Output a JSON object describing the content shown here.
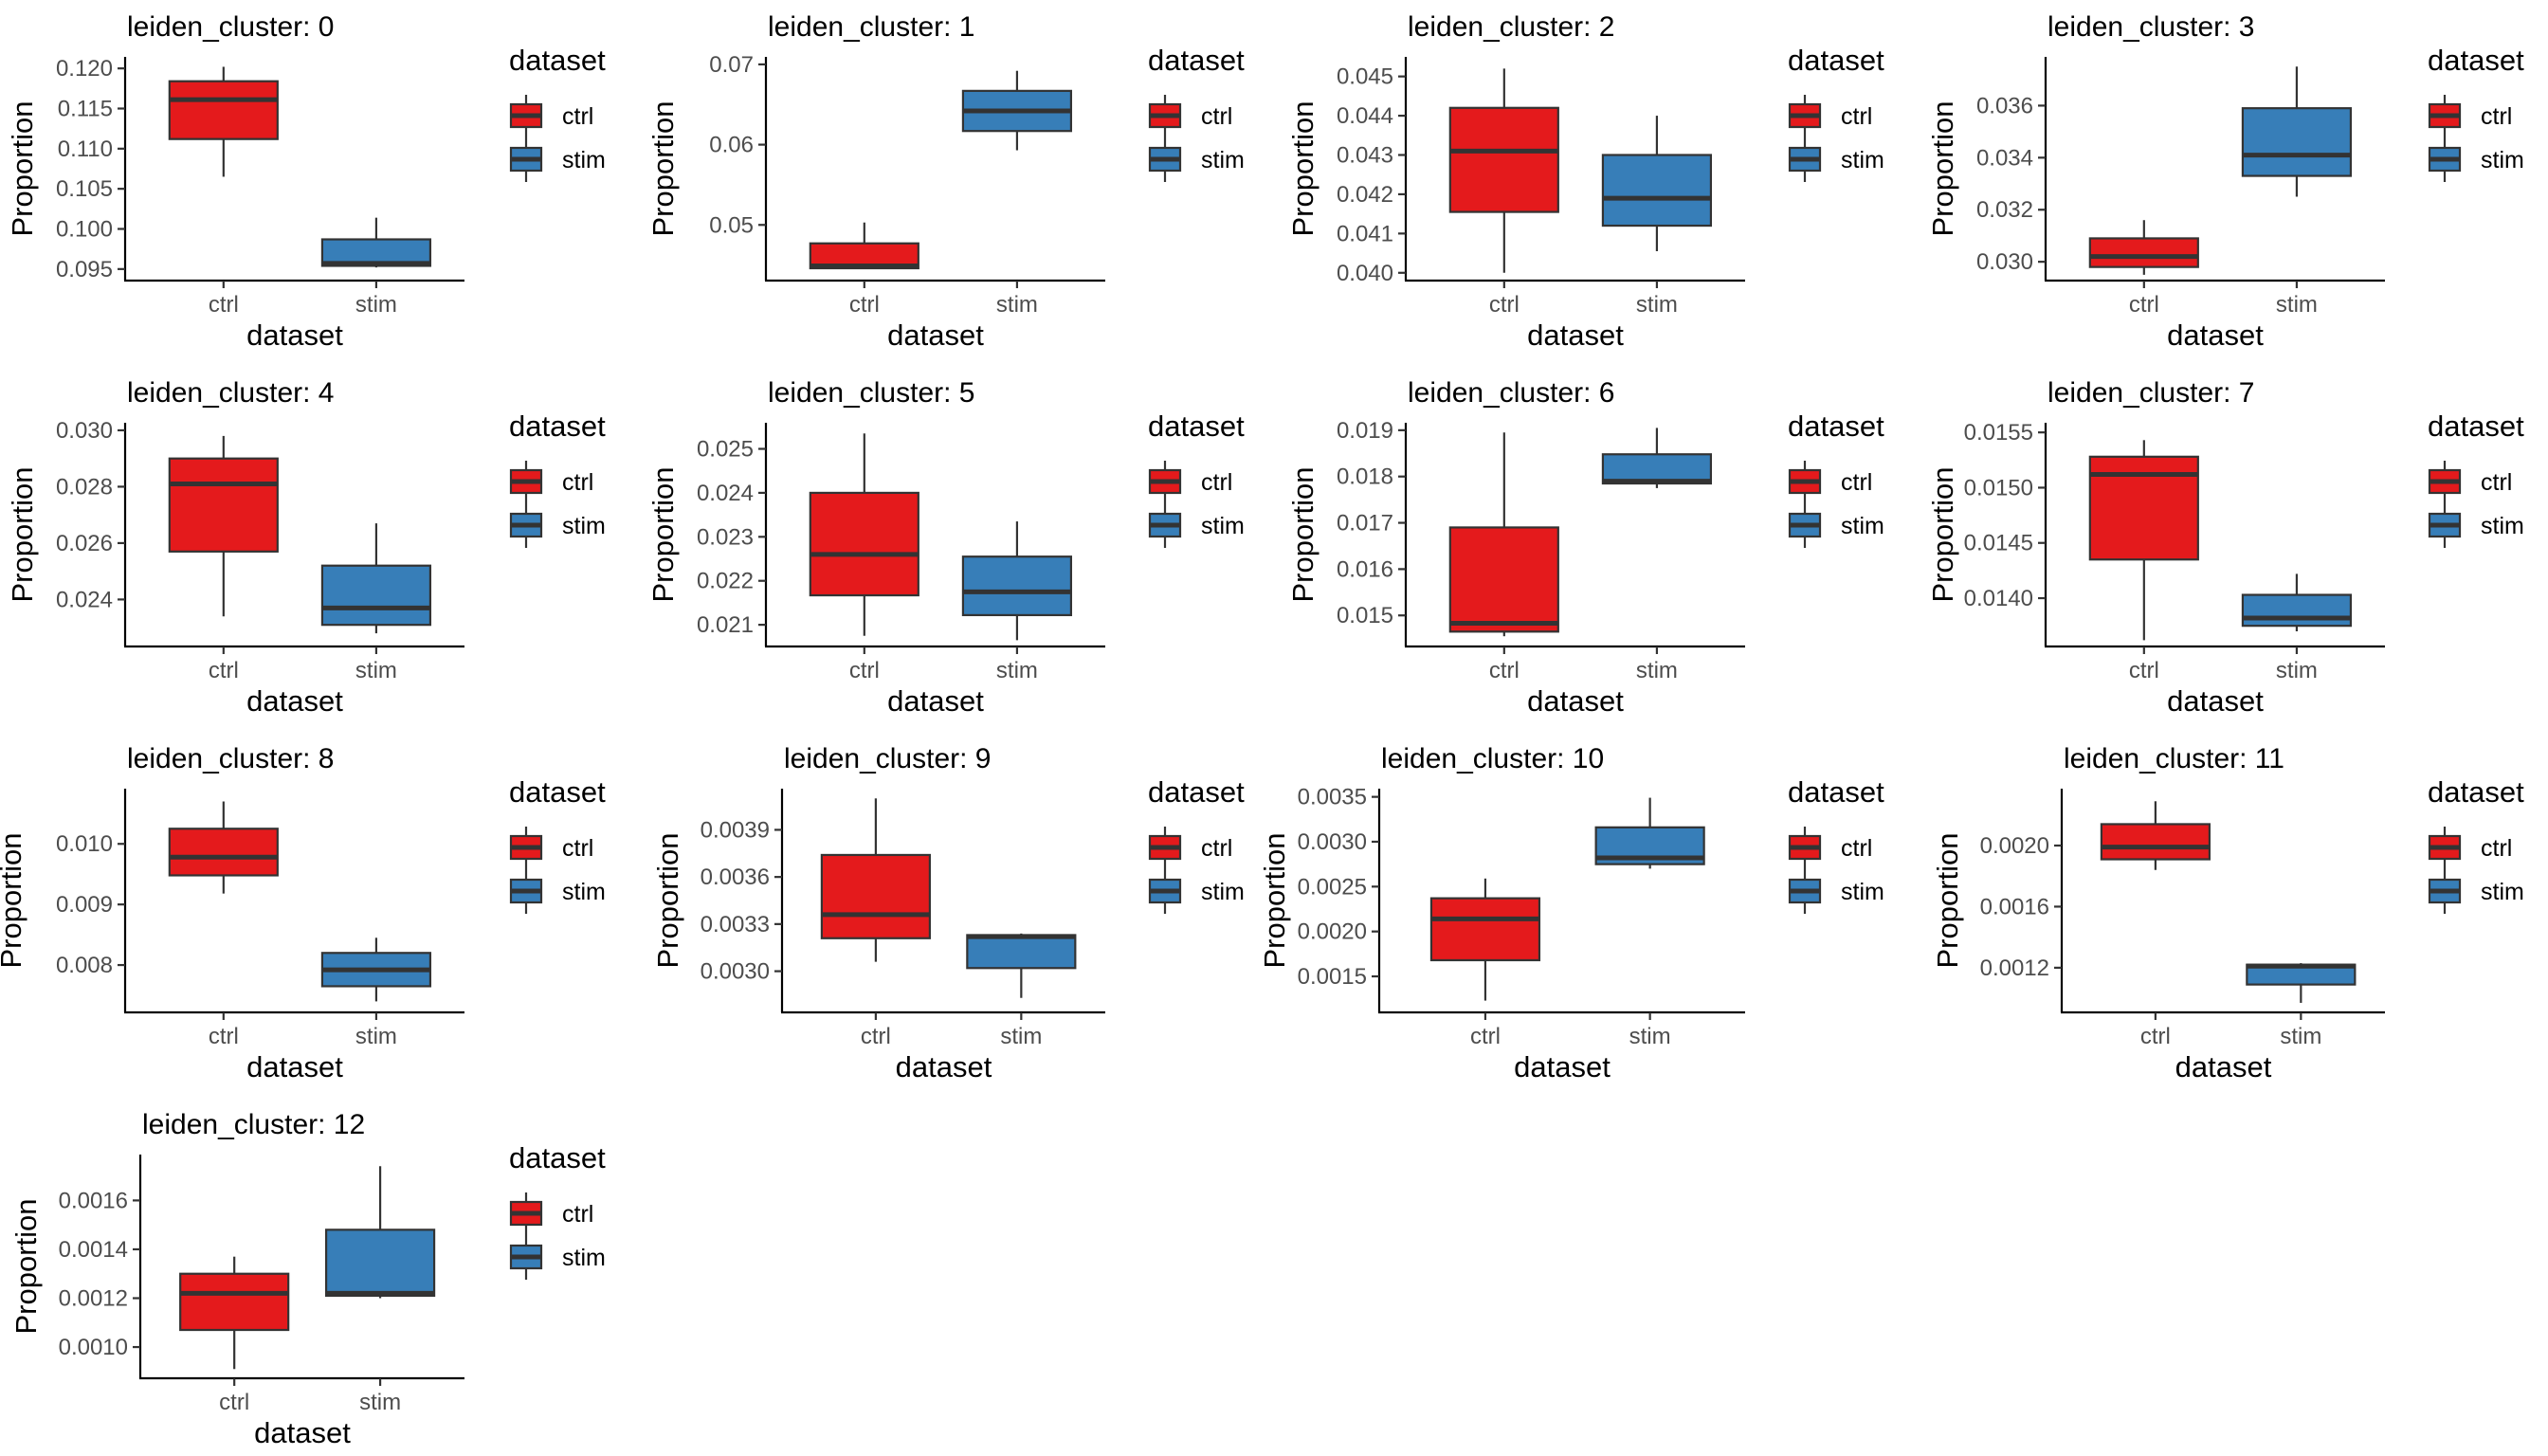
{
  "colors": {
    "ctrl": "#E41A1C",
    "stim": "#377EB8"
  },
  "chart_data": [
    {
      "type": "boxplot",
      "title": "leiden_cluster: 0",
      "xlabel": "dataset",
      "ylabel": "Proportion",
      "categories": [
        "ctrl",
        "stim"
      ],
      "ylim": [
        0.0938,
        0.1212
      ],
      "yticks": [
        "0.095",
        "0.100",
        "0.105",
        "0.110",
        "0.115",
        "0.120"
      ],
      "legend": {
        "title": "dataset",
        "entries": [
          "ctrl",
          "stim"
        ]
      },
      "boxes": [
        {
          "min": 0.1065,
          "q1": 0.1112,
          "median": 0.1161,
          "q3": 0.1184,
          "max": 0.1202
        },
        {
          "min": 0.0952,
          "q1": 0.0954,
          "median": 0.0957,
          "q3": 0.0987,
          "max": 0.1014
        }
      ]
    },
    {
      "type": "boxplot",
      "title": "leiden_cluster: 1",
      "xlabel": "dataset",
      "ylabel": "Proportion",
      "categories": [
        "ctrl",
        "stim"
      ],
      "ylim": [
        0.0433,
        0.0707
      ],
      "yticks": [
        "0.05",
        "0.06",
        "0.07"
      ],
      "legend": {
        "title": "dataset",
        "entries": [
          "ctrl",
          "stim"
        ]
      },
      "boxes": [
        {
          "min": 0.0445,
          "q1": 0.0446,
          "median": 0.0449,
          "q3": 0.0477,
          "max": 0.0503
        },
        {
          "min": 0.0593,
          "q1": 0.0617,
          "median": 0.0642,
          "q3": 0.0667,
          "max": 0.0692
        }
      ]
    },
    {
      "type": "boxplot",
      "title": "leiden_cluster: 2",
      "xlabel": "dataset",
      "ylabel": "Proportion",
      "categories": [
        "ctrl",
        "stim"
      ],
      "ylim": [
        0.03985,
        0.04545
      ],
      "yticks": [
        "0.040",
        "0.041",
        "0.042",
        "0.043",
        "0.044",
        "0.045"
      ],
      "legend": {
        "title": "dataset",
        "entries": [
          "ctrl",
          "stim"
        ]
      },
      "boxes": [
        {
          "min": 0.04,
          "q1": 0.04155,
          "median": 0.0431,
          "q3": 0.0442,
          "max": 0.0452
        },
        {
          "min": 0.04055,
          "q1": 0.0412,
          "median": 0.0419,
          "q3": 0.043,
          "max": 0.044
        }
      ]
    },
    {
      "type": "boxplot",
      "title": "leiden_cluster: 3",
      "xlabel": "dataset",
      "ylabel": "Proportion",
      "categories": [
        "ctrl",
        "stim"
      ],
      "ylim": [
        0.02935,
        0.0378
      ],
      "yticks": [
        "0.030",
        "0.032",
        "0.034",
        "0.036"
      ],
      "legend": {
        "title": "dataset",
        "entries": [
          "ctrl",
          "stim"
        ]
      },
      "boxes": [
        {
          "min": 0.0295,
          "q1": 0.0298,
          "median": 0.0302,
          "q3": 0.0309,
          "max": 0.0316
        },
        {
          "min": 0.0325,
          "q1": 0.0333,
          "median": 0.0341,
          "q3": 0.0359,
          "max": 0.0375
        }
      ]
    },
    {
      "type": "boxplot",
      "title": "leiden_cluster: 4",
      "xlabel": "dataset",
      "ylabel": "Proportion",
      "categories": [
        "ctrl",
        "stim"
      ],
      "ylim": [
        0.0224,
        0.0302
      ],
      "yticks": [
        "0.024",
        "0.026",
        "0.028",
        "0.030"
      ],
      "legend": {
        "title": "dataset",
        "entries": [
          "ctrl",
          "stim"
        ]
      },
      "boxes": [
        {
          "min": 0.0234,
          "q1": 0.0257,
          "median": 0.0281,
          "q3": 0.029,
          "max": 0.0298
        },
        {
          "min": 0.0228,
          "q1": 0.0231,
          "median": 0.0237,
          "q3": 0.0252,
          "max": 0.0267
        }
      ]
    },
    {
      "type": "boxplot",
      "title": "leiden_cluster: 5",
      "xlabel": "dataset",
      "ylabel": "Proportion",
      "categories": [
        "ctrl",
        "stim"
      ],
      "ylim": [
        0.02055,
        0.02555
      ],
      "yticks": [
        "0.021",
        "0.022",
        "0.023",
        "0.024",
        "0.025"
      ],
      "legend": {
        "title": "dataset",
        "entries": [
          "ctrl",
          "stim"
        ]
      },
      "boxes": [
        {
          "min": 0.02075,
          "q1": 0.02167,
          "median": 0.0226,
          "q3": 0.024,
          "max": 0.02535
        },
        {
          "min": 0.02065,
          "q1": 0.02122,
          "median": 0.02175,
          "q3": 0.02255,
          "max": 0.02335
        }
      ]
    },
    {
      "type": "boxplot",
      "title": "leiden_cluster: 6",
      "xlabel": "dataset",
      "ylabel": "Proportion",
      "categories": [
        "ctrl",
        "stim"
      ],
      "ylim": [
        0.01437,
        0.01912
      ],
      "yticks": [
        "0.015",
        "0.016",
        "0.017",
        "0.018",
        "0.019"
      ],
      "legend": {
        "title": "dataset",
        "entries": [
          "ctrl",
          "stim"
        ]
      },
      "boxes": [
        {
          "min": 0.01455,
          "q1": 0.01465,
          "median": 0.01483,
          "q3": 0.0169,
          "max": 0.01895
        },
        {
          "min": 0.01775,
          "q1": 0.01785,
          "median": 0.0179,
          "q3": 0.01848,
          "max": 0.01905
        }
      ]
    },
    {
      "type": "boxplot",
      "title": "leiden_cluster: 7",
      "xlabel": "dataset",
      "ylabel": "Proportion",
      "categories": [
        "ctrl",
        "stim"
      ],
      "ylim": [
        0.01358,
        0.01557
      ],
      "yticks": [
        "0.0140",
        "0.0145",
        "0.0150",
        "0.0155"
      ],
      "legend": {
        "title": "dataset",
        "entries": [
          "ctrl",
          "stim"
        ]
      },
      "boxes": [
        {
          "min": 0.01362,
          "q1": 0.01435,
          "median": 0.01512,
          "q3": 0.01528,
          "max": 0.01543
        },
        {
          "min": 0.0137,
          "q1": 0.01375,
          "median": 0.01382,
          "q3": 0.01403,
          "max": 0.01422
        }
      ]
    },
    {
      "type": "boxplot",
      "title": "leiden_cluster: 8",
      "xlabel": "dataset",
      "ylabel": "Proportion",
      "categories": [
        "ctrl",
        "stim"
      ],
      "ylim": [
        0.00725,
        0.01088
      ],
      "yticks": [
        "0.008",
        "0.009",
        "0.010"
      ],
      "legend": {
        "title": "dataset",
        "entries": [
          "ctrl",
          "stim"
        ]
      },
      "boxes": [
        {
          "min": 0.00918,
          "q1": 0.00948,
          "median": 0.00978,
          "q3": 0.01025,
          "max": 0.0107
        },
        {
          "min": 0.0074,
          "q1": 0.00765,
          "median": 0.00792,
          "q3": 0.0082,
          "max": 0.00845
        }
      ]
    },
    {
      "type": "boxplot",
      "title": "leiden_cluster: 9",
      "xlabel": "dataset",
      "ylabel": "Proportion",
      "categories": [
        "ctrl",
        "stim"
      ],
      "ylim": [
        0.00275,
        0.00415
      ],
      "yticks": [
        "0.0030",
        "0.0033",
        "0.0036",
        "0.0039"
      ],
      "legend": {
        "title": "dataset",
        "entries": [
          "ctrl",
          "stim"
        ]
      },
      "boxes": [
        {
          "min": 0.00306,
          "q1": 0.00321,
          "median": 0.00336,
          "q3": 0.00374,
          "max": 0.0041
        },
        {
          "min": 0.00283,
          "q1": 0.00302,
          "median": 0.00322,
          "q3": 0.00323,
          "max": 0.00324
        }
      ]
    },
    {
      "type": "boxplot",
      "title": "leiden_cluster: 10",
      "xlabel": "dataset",
      "ylabel": "Proportion",
      "categories": [
        "ctrl",
        "stim"
      ],
      "ylim": [
        0.00112,
        0.00357
      ],
      "yticks": [
        "0.0015",
        "0.0020",
        "0.0025",
        "0.0030",
        "0.0035"
      ],
      "legend": {
        "title": "dataset",
        "entries": [
          "ctrl",
          "stim"
        ]
      },
      "boxes": [
        {
          "min": 0.00123,
          "q1": 0.00168,
          "median": 0.00214,
          "q3": 0.00237,
          "max": 0.00259
        },
        {
          "min": 0.0027,
          "q1": 0.00275,
          "median": 0.00282,
          "q3": 0.00316,
          "max": 0.00349
        }
      ]
    },
    {
      "type": "boxplot",
      "title": "leiden_cluster: 11",
      "xlabel": "dataset",
      "ylabel": "Proportion",
      "categories": [
        "ctrl",
        "stim"
      ],
      "ylim": [
        0.00092,
        0.00236
      ],
      "yticks": [
        "0.0012",
        "0.0016",
        "0.0020"
      ],
      "legend": {
        "title": "dataset",
        "entries": [
          "ctrl",
          "stim"
        ]
      },
      "boxes": [
        {
          "min": 0.00184,
          "q1": 0.00191,
          "median": 0.00199,
          "q3": 0.00214,
          "max": 0.00229
        },
        {
          "min": 0.00097,
          "q1": 0.00109,
          "median": 0.00121,
          "q3": 0.00122,
          "max": 0.00123
        }
      ]
    },
    {
      "type": "boxplot",
      "title": "leiden_cluster: 12",
      "xlabel": "dataset",
      "ylabel": "Proportion",
      "categories": [
        "ctrl",
        "stim"
      ],
      "ylim": [
        0.00088,
        0.00178
      ],
      "yticks": [
        "0.0010",
        "0.0012",
        "0.0014",
        "0.0016"
      ],
      "legend": {
        "title": "dataset",
        "entries": [
          "ctrl",
          "stim"
        ]
      },
      "boxes": [
        {
          "min": 0.00091,
          "q1": 0.00107,
          "median": 0.00122,
          "q3": 0.0013,
          "max": 0.00137
        },
        {
          "min": 0.0012,
          "q1": 0.00121,
          "median": 0.00122,
          "q3": 0.00148,
          "max": 0.00174
        }
      ]
    }
  ]
}
